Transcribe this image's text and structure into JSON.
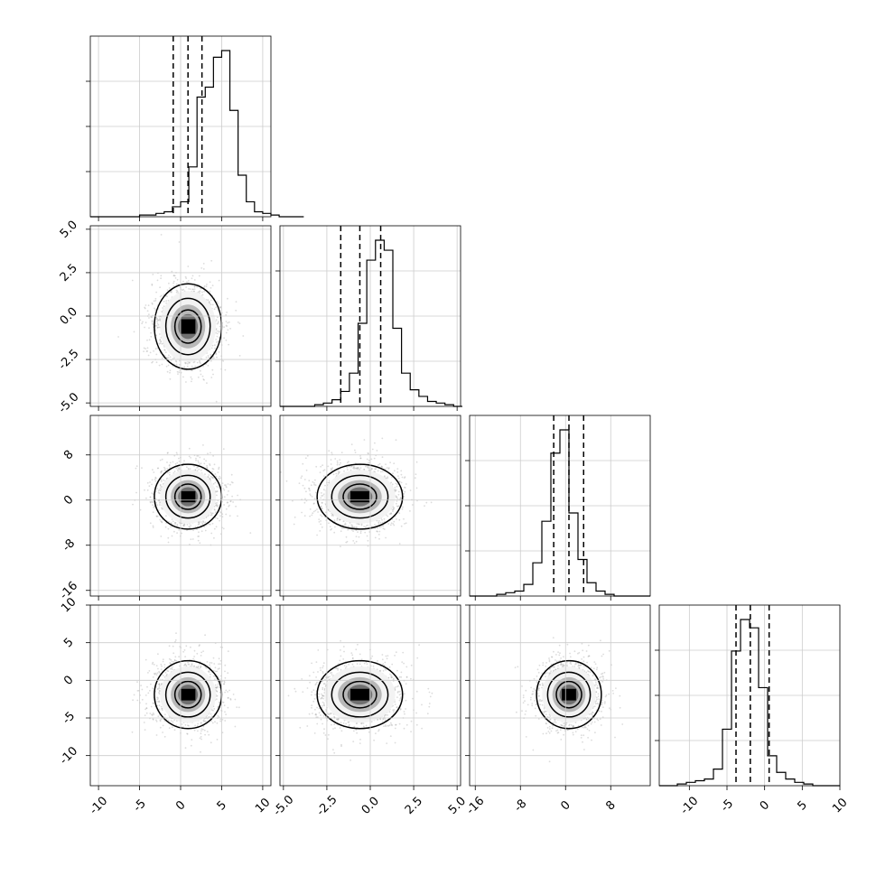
{
  "chart_data": [
    {
      "type": "histogram",
      "panel": "p1",
      "x_ticks": [
        "-10",
        "-5",
        "0",
        "5",
        "10"
      ],
      "xlim": [
        -11,
        11
      ],
      "bin_width": 1,
      "counts": [
        0,
        0,
        0,
        0,
        0,
        0,
        1,
        1,
        2,
        3,
        6,
        9,
        30,
        72,
        78,
        96,
        100,
        64,
        25,
        9,
        3,
        2,
        1,
        0,
        0,
        0
      ],
      "bins_start": -11,
      "quantiles": [
        -0.9,
        0.9,
        2.6
      ]
    },
    {
      "type": "histogram",
      "panel": "p2",
      "x_ticks": [
        "-5.0",
        "-2.5",
        "0.0",
        "2.5",
        "5.0"
      ],
      "xlim": [
        -5.2,
        5.2
      ],
      "bin_width": 0.5,
      "counts": [
        0,
        0,
        0,
        0,
        1,
        2,
        4,
        9,
        20,
        50,
        88,
        100,
        94,
        47,
        20,
        10,
        6,
        3,
        2,
        1,
        0
      ],
      "bins_start": -5.2,
      "quantiles": [
        -1.7,
        -0.6,
        0.6
      ]
    },
    {
      "type": "histogram",
      "panel": "p3",
      "x_ticks": [
        "-16",
        "-8",
        "0",
        "8"
      ],
      "xlim": [
        -17,
        15
      ],
      "bin_width": 1.6,
      "counts": [
        0,
        0,
        0,
        1,
        2,
        3,
        7,
        20,
        45,
        86,
        100,
        50,
        22,
        8,
        3,
        1,
        0,
        0,
        0,
        0
      ],
      "bins_start": -17,
      "quantiles": [
        -2.1,
        0.6,
        3.2
      ]
    },
    {
      "type": "histogram",
      "panel": "p4",
      "x_ticks": [
        "-10",
        "-5",
        "0",
        "5",
        "10"
      ],
      "xlim": [
        -14,
        10
      ],
      "bin_width": 1.2,
      "counts": [
        0,
        0,
        1,
        2,
        3,
        4,
        10,
        34,
        81,
        100,
        95,
        59,
        18,
        8,
        4,
        2,
        1,
        0,
        0,
        0
      ],
      "bins_start": -14,
      "quantiles": [
        -3.8,
        -1.9,
        0.6
      ]
    },
    {
      "type": "scatter",
      "panel": "s21",
      "x_ticks": [
        "-10",
        "-5",
        "0",
        "5",
        "10"
      ],
      "y_ticks": [
        "-5.0",
        "-2.5",
        "0.0",
        "2.5",
        "5.0"
      ],
      "xlim": [
        -11,
        11
      ],
      "ylim": [
        -5.2,
        5.2
      ],
      "center": [
        0.9,
        -0.6
      ],
      "spread": [
        2.0,
        1.2
      ]
    },
    {
      "type": "scatter",
      "panel": "s31",
      "y_ticks": [
        "-16",
        "-8",
        "0",
        "8"
      ],
      "xlim": [
        -11,
        11
      ],
      "ylim": [
        -17,
        15
      ],
      "center": [
        0.9,
        0.6
      ],
      "spread": [
        2.0,
        2.8
      ]
    },
    {
      "type": "scatter",
      "panel": "s32",
      "xlim": [
        -5.2,
        5.2
      ],
      "ylim": [
        -17,
        15
      ],
      "center": [
        -0.6,
        0.6
      ],
      "spread": [
        1.2,
        2.8
      ]
    },
    {
      "type": "scatter",
      "panel": "s41",
      "y_ticks": [
        "-10",
        "-5",
        "0",
        "5",
        "10"
      ],
      "xlim": [
        -11,
        11
      ],
      "ylim": [
        -14,
        10
      ],
      "center": [
        0.9,
        -1.9
      ],
      "spread": [
        2.0,
        2.2
      ]
    },
    {
      "type": "scatter",
      "panel": "s42",
      "xlim": [
        -5.2,
        5.2
      ],
      "ylim": [
        -14,
        10
      ],
      "center": [
        -0.6,
        -1.9
      ],
      "spread": [
        1.2,
        2.2
      ]
    },
    {
      "type": "scatter",
      "panel": "s43",
      "xlim": [
        -17,
        15
      ],
      "ylim": [
        -14,
        10
      ],
      "center": [
        0.6,
        -1.9
      ],
      "spread": [
        2.8,
        2.2
      ]
    }
  ]
}
